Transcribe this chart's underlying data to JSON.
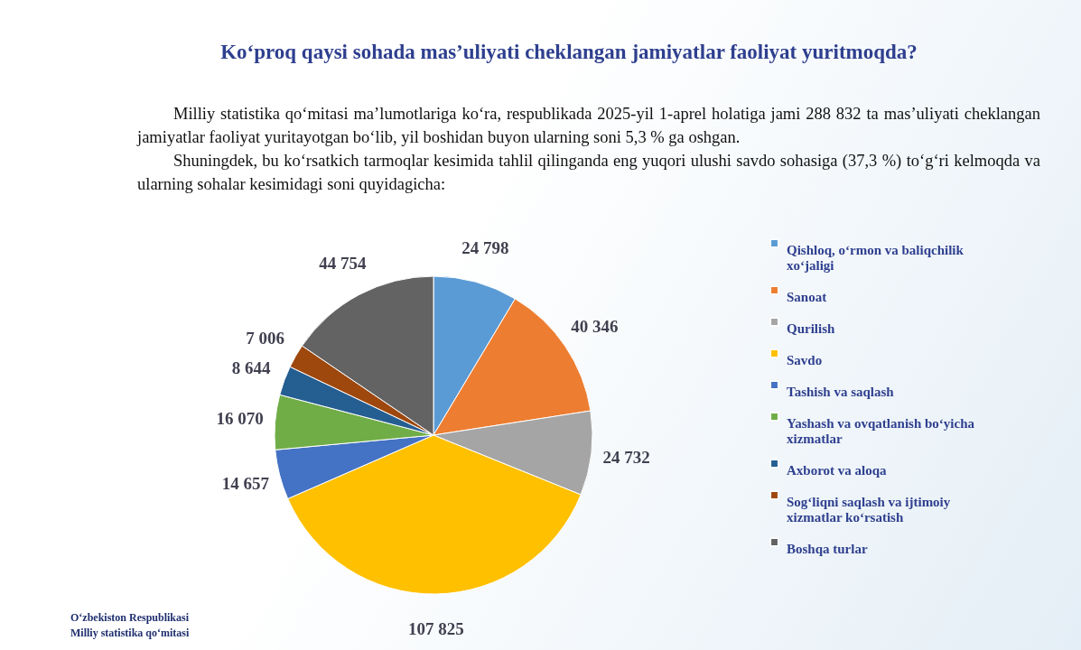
{
  "chart_data": {
    "type": "pie",
    "title": "Ko‘proq qaysi sohada mas’uliyati cheklangan jamiyatlar faoliyat yuritmoqda?",
    "subtitle": "Milliy statistika qo‘mitasi ma’lumotlariga ko‘ra, respublikada 2025-yil 1-aprel holatiga jami 288 832 ta mas’uliyati cheklangan jamiyatlar faoliyat yuritayotgan bo‘lib, yil boshidan buyon ularning soni 5,3 % ga oshgan.\nShuningdek, bu ko‘rsatkich tarmoqlar kesimida tahlil qilinganda eng yuqori ulushi savdo sohasiga (37,3 %) to‘g‘ri kelmoqda va ularning sohalar kesimidagi soni quyidagicha:",
    "categories": [
      "Qishloq, o‘rmon va baliqchilik xo‘jaligi",
      "Sanoat",
      "Qurilish",
      "Savdo",
      "Tashish va saqlash",
      "Yashash va ovqatlanish bo‘yicha xizmatlar",
      "Axborot va aloqa",
      "Sog‘liqni saqlash va ijtimoiy xizmatlar ko‘rsatish",
      "Boshqa turlar"
    ],
    "values": [
      24798,
      40346,
      24732,
      107825,
      14657,
      16070,
      8644,
      7006,
      44754
    ],
    "value_labels": [
      "24 798",
      "40 346",
      "24 732",
      "107 825",
      "14 657",
      "16 070",
      "8 644",
      "7 006",
      "44 754"
    ],
    "colors": [
      "#5b9bd5",
      "#ed7d31",
      "#a5a5a5",
      "#ffc000",
      "#4472c4",
      "#70ad47",
      "#255e91",
      "#9e480e",
      "#636363"
    ],
    "legend": "right",
    "annotations": [
      "O‘zbekiston Respublikasi\nMilliy statistika qo‘mitasi"
    ]
  }
}
